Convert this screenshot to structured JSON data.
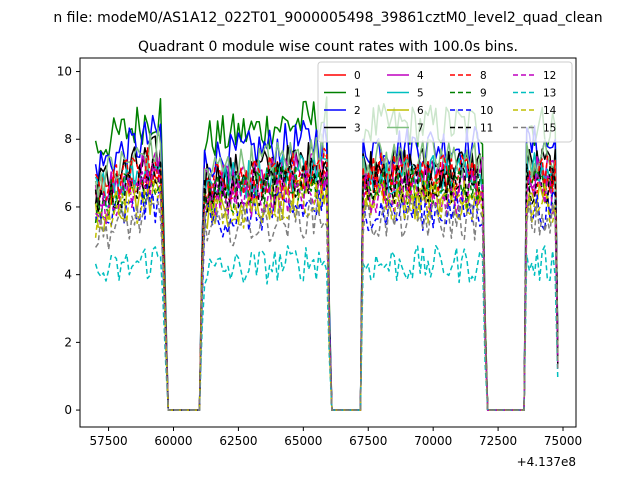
{
  "chart_data": {
    "type": "line",
    "suptitle": "n file: modeM0/AS1A12_022T01_9000005498_39861cztM0_level2_quad_clean",
    "title": "Quadrant 0 module wise count rates with 100.0s bins.",
    "xlabel": "",
    "ylabel": "",
    "x_offset_label": "+4.137e8",
    "xlim": [
      56400,
      75500
    ],
    "ylim": [
      -0.5,
      10.4
    ],
    "x_ticks": [
      57500,
      60000,
      62500,
      65000,
      67500,
      70000,
      72500,
      75000
    ],
    "x_tick_labels": [
      "57500",
      "60000",
      "62500",
      "65000",
      "67500",
      "70000",
      "72500",
      "75000"
    ],
    "y_ticks": [
      0,
      2,
      4,
      6,
      8,
      10
    ],
    "y_tick_labels": [
      "0",
      "2",
      "4",
      "6",
      "8",
      "10"
    ],
    "bin_width": 100,
    "x_start": 57000,
    "x_end": 74800,
    "segments": [
      {
        "start": 57000,
        "end": 59500,
        "shape": "rise"
      },
      {
        "start": 59600,
        "end": 59700,
        "shape": "fall_mid"
      },
      {
        "start": 59800,
        "end": 61000,
        "shape": "gap"
      },
      {
        "start": 61100,
        "end": 61100,
        "shape": "rise_mid"
      },
      {
        "start": 61200,
        "end": 65900,
        "shape": "mild_rise"
      },
      {
        "start": 66000,
        "end": 66000,
        "shape": "fall_low"
      },
      {
        "start": 66100,
        "end": 67200,
        "shape": "gap"
      },
      {
        "start": 67300,
        "end": 71900,
        "shape": "flat"
      },
      {
        "start": 72000,
        "end": 72000,
        "shape": "fall_low"
      },
      {
        "start": 72100,
        "end": 73500,
        "shape": "gap"
      },
      {
        "start": 73600,
        "end": 74700,
        "shape": "flat_short"
      },
      {
        "start": 74800,
        "end": 74800,
        "shape": "end_drop"
      }
    ],
    "legend_position": "top-right",
    "series": [
      {
        "name": "0",
        "color": "#ff0000",
        "dash": "solid",
        "level": 6.8
      },
      {
        "name": "1",
        "color": "#008000",
        "dash": "solid",
        "level": 8.4
      },
      {
        "name": "2",
        "color": "#0000ff",
        "dash": "solid",
        "level": 7.8
      },
      {
        "name": "3",
        "color": "#000000",
        "dash": "solid",
        "level": 7.2
      },
      {
        "name": "4",
        "color": "#bf00bf",
        "dash": "solid",
        "level": 6.9
      },
      {
        "name": "5",
        "color": "#00bfbf",
        "dash": "solid",
        "level": 7.0
      },
      {
        "name": "6",
        "color": "#bfbf00",
        "dash": "solid",
        "level": 6.2
      },
      {
        "name": "7",
        "color": "#7fbf7f",
        "dash": "solid",
        "level": 7.4
      },
      {
        "name": "8",
        "color": "#ff0000",
        "dash": "dashed",
        "level": 7.0
      },
      {
        "name": "9",
        "color": "#008000",
        "dash": "dashed",
        "level": 6.6
      },
      {
        "name": "10",
        "color": "#0000ff",
        "dash": "dashed",
        "level": 5.9
      },
      {
        "name": "11",
        "color": "#000000",
        "dash": "dashed",
        "level": 6.7
      },
      {
        "name": "12",
        "color": "#bf00bf",
        "dash": "dashed",
        "level": 6.4
      },
      {
        "name": "13",
        "color": "#00bfbf",
        "dash": "dashed",
        "level": 4.3
      },
      {
        "name": "14",
        "color": "#bfbf00",
        "dash": "dashed",
        "level": 6.1
      },
      {
        "name": "15",
        "color": "#7f7f7f",
        "dash": "dashed",
        "level": 5.6
      }
    ]
  }
}
